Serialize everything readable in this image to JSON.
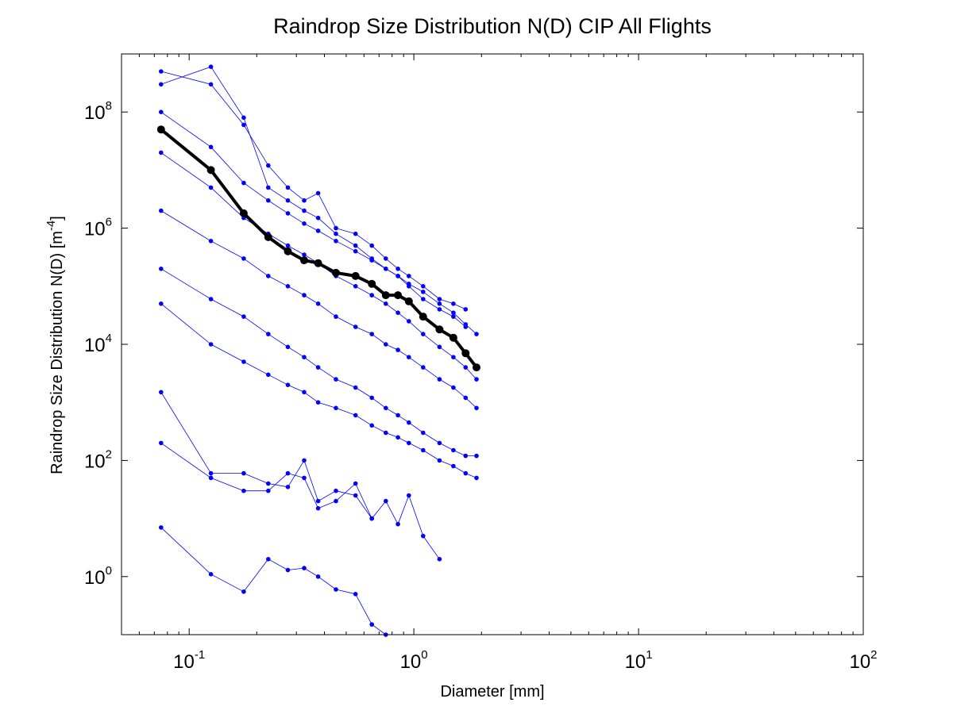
{
  "chart_data": {
    "type": "line",
    "title": "Raindrop Size Distribution N(D) CIP All Flights",
    "xlabel": "Diameter [mm]",
    "ylabel": "Raindrop Size Distribution N(D) [m",
    "ylabel_unit_exp": "-4",
    "ylabel_close": "]",
    "x_scale": "log",
    "y_scale": "log",
    "xlim": [
      0.05,
      100
    ],
    "ylim": [
      0.1,
      1000000000
    ],
    "grid": false,
    "x_ticks": [
      {
        "base": "10",
        "exp": "-1",
        "value": 0.1
      },
      {
        "base": "10",
        "exp": "0",
        "value": 1
      },
      {
        "base": "10",
        "exp": "1",
        "value": 10
      },
      {
        "base": "10",
        "exp": "2",
        "value": 100
      }
    ],
    "y_ticks": [
      {
        "base": "10",
        "exp": "0",
        "value": 1
      },
      {
        "base": "10",
        "exp": "2",
        "value": 100
      },
      {
        "base": "10",
        "exp": "4",
        "value": 10000
      },
      {
        "base": "10",
        "exp": "6",
        "value": 1000000
      },
      {
        "base": "10",
        "exp": "8",
        "value": 100000000
      }
    ],
    "bin_centers": [
      0.075,
      0.125,
      0.175,
      0.225,
      0.275,
      0.325,
      0.375,
      0.45,
      0.55,
      0.65,
      0.75,
      0.85,
      0.95,
      1.1,
      1.3,
      1.5,
      1.7,
      1.9
    ],
    "series_color": "#0000ff",
    "mean_color": "#000000",
    "mean_series": {
      "x": [
        0.075,
        0.125,
        0.175,
        0.225,
        0.275,
        0.325,
        0.375,
        0.45,
        0.55,
        0.65,
        0.75,
        0.85,
        0.95,
        1.1,
        1.3,
        1.5,
        1.7,
        1.9
      ],
      "y": [
        50000000,
        10000000,
        1800000,
        700000,
        400000,
        280000,
        250000,
        170000,
        150000,
        110000,
        70000,
        70000,
        55000,
        30000,
        18000,
        13000,
        7000,
        4000
      ]
    },
    "series": [
      {
        "x": [
          0.075,
          0.125,
          0.175,
          0.225,
          0.275,
          0.325,
          0.375,
          0.45,
          0.55,
          0.65,
          0.75
        ],
        "y": [
          7,
          1.1,
          0.55,
          2,
          1.3,
          1.4,
          1,
          0.6,
          0.5,
          0.15,
          0.1
        ]
      },
      {
        "x": [
          0.075,
          0.125,
          0.175,
          0.225,
          0.275,
          0.325,
          0.375,
          0.45,
          0.55,
          0.65
        ],
        "y": [
          200,
          50,
          30,
          30,
          60,
          50,
          15,
          20,
          40,
          10
        ]
      },
      {
        "x": [
          0.075,
          0.125,
          0.175,
          0.225,
          0.275,
          0.325,
          0.375,
          0.45,
          0.55,
          0.65,
          0.75,
          0.85,
          0.95,
          1.1,
          1.3
        ],
        "y": [
          1500,
          60,
          60,
          40,
          35,
          100,
          20,
          30,
          25,
          10,
          20,
          8,
          25,
          5,
          2
        ]
      },
      {
        "x": [
          0.075,
          0.125,
          0.175,
          0.225,
          0.275,
          0.325,
          0.375,
          0.45,
          0.55,
          0.65,
          0.75,
          0.85,
          0.95,
          1.1,
          1.3,
          1.5,
          1.7
        ],
        "y": [
          500000000,
          300000000,
          60000000,
          12000000,
          5000000,
          3000000,
          4000000,
          1000000,
          800000,
          500000,
          300000,
          200000,
          150000,
          100000,
          60000,
          50000,
          40000
        ]
      },
      {
        "x": [
          0.075,
          0.125,
          0.175,
          0.225,
          0.275,
          0.325,
          0.375,
          0.45,
          0.55,
          0.65,
          0.75,
          0.85,
          0.95,
          1.1,
          1.3,
          1.5,
          1.7
        ],
        "y": [
          300000000,
          600000000,
          80000000,
          5000000,
          3000000,
          2000000,
          1500000,
          800000,
          500000,
          300000,
          200000,
          150000,
          100000,
          60000,
          40000,
          30000,
          20000
        ]
      },
      {
        "x": [
          0.075,
          0.125,
          0.175,
          0.225,
          0.275,
          0.325,
          0.375,
          0.45,
          0.55,
          0.65,
          0.75,
          0.85,
          0.95,
          1.1,
          1.3,
          1.5,
          1.7,
          1.9
        ],
        "y": [
          100000000,
          25000000,
          6000000,
          3000000,
          1800000,
          1200000,
          900000,
          600000,
          400000,
          280000,
          200000,
          150000,
          110000,
          80000,
          50000,
          35000,
          22000,
          15000
        ]
      },
      {
        "x": [
          0.075,
          0.125,
          0.175,
          0.225,
          0.275,
          0.325,
          0.375,
          0.45,
          0.55,
          0.65,
          0.75,
          0.85,
          0.95,
          1.1,
          1.3,
          1.5,
          1.7,
          1.9
        ],
        "y": [
          20000000,
          5000000,
          1500000,
          800000,
          500000,
          350000,
          250000,
          150000,
          100000,
          70000,
          50000,
          35000,
          25000,
          15000,
          9000,
          6000,
          4000,
          2500
        ]
      },
      {
        "x": [
          0.075,
          0.125,
          0.175,
          0.225,
          0.275,
          0.325,
          0.375,
          0.45,
          0.55,
          0.65,
          0.75,
          0.85,
          0.95,
          1.1,
          1.3,
          1.5,
          1.7,
          1.9
        ],
        "y": [
          2000000,
          600000,
          300000,
          150000,
          100000,
          70000,
          50000,
          30000,
          20000,
          15000,
          10000,
          8000,
          6000,
          4000,
          2500,
          1800,
          1200,
          800
        ]
      },
      {
        "x": [
          0.075,
          0.125,
          0.175,
          0.225,
          0.275,
          0.325,
          0.375,
          0.45,
          0.55,
          0.65,
          0.75,
          0.85,
          0.95,
          1.1,
          1.3,
          1.5,
          1.7,
          1.9
        ],
        "y": [
          200000,
          60000,
          30000,
          15000,
          9000,
          6000,
          4000,
          2500,
          1800,
          1200,
          800,
          600,
          450,
          300,
          200,
          150,
          120,
          120
        ]
      },
      {
        "x": [
          0.075,
          0.125,
          0.175,
          0.225,
          0.275,
          0.325,
          0.375,
          0.45,
          0.55,
          0.65,
          0.75,
          0.85,
          0.95,
          1.1,
          1.3,
          1.5,
          1.7,
          1.9
        ],
        "y": [
          50000,
          10000,
          5000,
          3000,
          2000,
          1500,
          1000,
          800,
          600,
          400,
          300,
          250,
          200,
          150,
          100,
          80,
          60,
          50
        ]
      }
    ]
  }
}
